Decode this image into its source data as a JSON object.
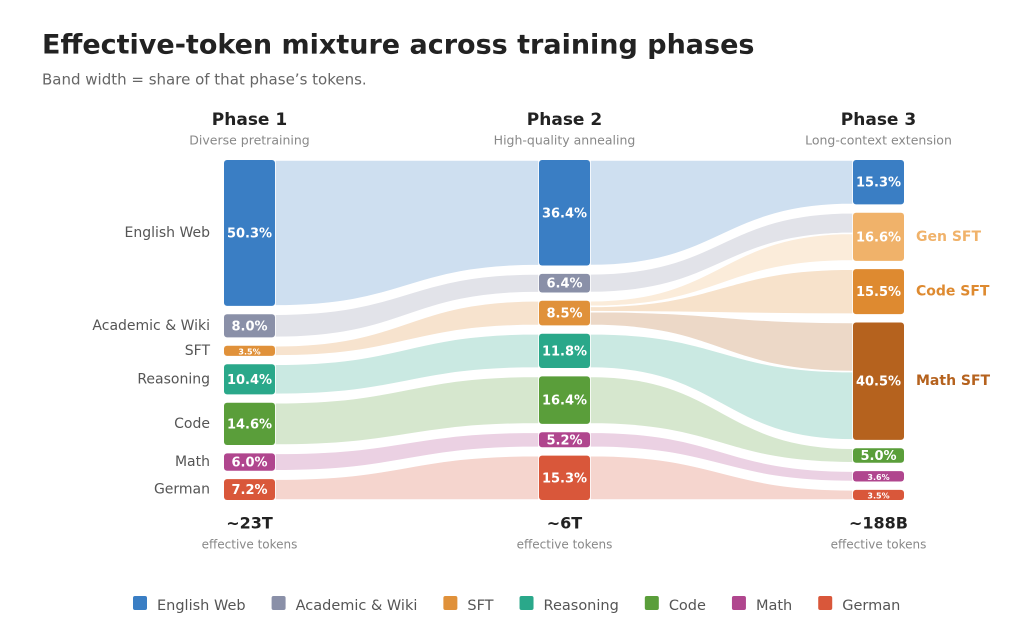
{
  "chart_data": {
    "type": "alluvial",
    "title": "Effective-token mixture across training phases",
    "subtitle": "Band width = share of that phase’s tokens.",
    "legend": [
      {
        "name": "English Web",
        "color": "#3a7ec4"
      },
      {
        "name": "Academic & Wiki",
        "color": "#8a90a8"
      },
      {
        "name": "SFT",
        "color": "#e0913a"
      },
      {
        "name": "Reasoning",
        "color": "#2aa88a"
      },
      {
        "name": "Code",
        "color": "#5a9e3a"
      },
      {
        "name": "Math",
        "color": "#b0468e"
      },
      {
        "name": "German",
        "color": "#d9573a"
      }
    ],
    "phases": [
      {
        "name": "Phase 1",
        "subtitle": "Diverse pretraining",
        "total": "~23T",
        "total_note": "effective tokens",
        "labels": [
          "English Web",
          "Academic & Wiki",
          "SFT",
          "Reasoning",
          "Code",
          "Math",
          "German"
        ],
        "colors": [
          "#3a7ec4",
          "#8a90a8",
          "#e0913a",
          "#2aa88a",
          "#5a9e3a",
          "#b0468e",
          "#d9573a"
        ],
        "values": [
          50.3,
          8.0,
          3.5,
          10.4,
          14.6,
          6.0,
          7.2
        ],
        "value_labels": [
          "50.3%",
          "8.0%",
          "3.5%",
          "10.4%",
          "14.6%",
          "6.0%",
          "7.2%"
        ]
      },
      {
        "name": "Phase 2",
        "subtitle": "High-quality annealing",
        "total": "~6T",
        "total_note": "effective tokens",
        "colors": [
          "#3a7ec4",
          "#8a90a8",
          "#e0913a",
          "#2aa88a",
          "#5a9e3a",
          "#b0468e",
          "#d9573a"
        ],
        "values": [
          36.4,
          6.4,
          8.5,
          11.8,
          16.4,
          5.2,
          15.3
        ],
        "value_labels": [
          "36.4%",
          "6.4%",
          "8.5%",
          "11.8%",
          "16.4%",
          "5.2%",
          "15.3%"
        ],
        "sources": [
          [
            0
          ],
          [
            1
          ],
          [
            2
          ],
          [
            3
          ],
          [
            4
          ],
          [
            5
          ],
          [
            6
          ]
        ]
      },
      {
        "name": "Phase 3",
        "subtitle": "Long-context extension",
        "total": "~188B",
        "total_note": "effective tokens",
        "labels": [
          null,
          "Gen SFT",
          "Code SFT",
          "Math SFT",
          null,
          null,
          null
        ],
        "colors": [
          "#3a7ec4",
          "#f0b26a",
          "#de8a30",
          "#b5621e",
          "#5a9e3a",
          "#b0468e",
          "#d9573a"
        ],
        "values": [
          15.3,
          16.6,
          15.5,
          40.5,
          5.0,
          3.6,
          3.5
        ],
        "value_labels": [
          "15.3%",
          "16.6%",
          "15.5%",
          "40.5%",
          "5.0%",
          "3.6%",
          "3.5%"
        ],
        "sources": [
          [
            0
          ],
          [
            1,
            2
          ],
          [
            2
          ],
          [
            2,
            3
          ],
          [
            4
          ],
          [
            5
          ],
          [
            6
          ]
        ]
      }
    ]
  }
}
